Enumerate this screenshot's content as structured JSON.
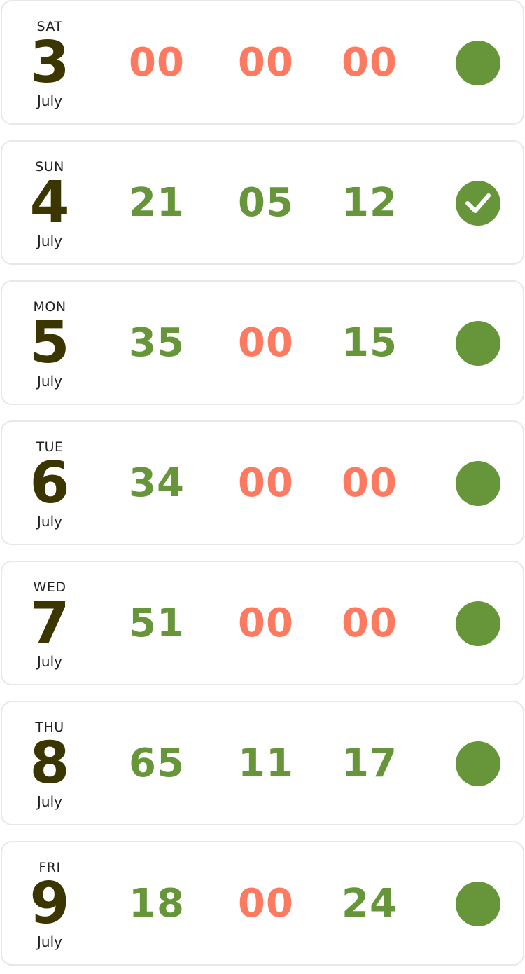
{
  "colors": {
    "positive": "#669639",
    "zero": "#fd7a61",
    "status_fill": "#669639",
    "check_mark": "#ffffff"
  },
  "days": [
    {
      "weekday": "SAT",
      "day": "3",
      "month": "July",
      "values": [
        "00",
        "00",
        "00"
      ],
      "status": "dot"
    },
    {
      "weekday": "SUN",
      "day": "4",
      "month": "July",
      "values": [
        "21",
        "05",
        "12"
      ],
      "status": "check"
    },
    {
      "weekday": "MON",
      "day": "5",
      "month": "July",
      "values": [
        "35",
        "00",
        "15"
      ],
      "status": "dot"
    },
    {
      "weekday": "TUE",
      "day": "6",
      "month": "July",
      "values": [
        "34",
        "00",
        "00"
      ],
      "status": "dot"
    },
    {
      "weekday": "WED",
      "day": "7",
      "month": "July",
      "values": [
        "51",
        "00",
        "00"
      ],
      "status": "dot"
    },
    {
      "weekday": "THU",
      "day": "8",
      "month": "July",
      "values": [
        "65",
        "11",
        "17"
      ],
      "status": "dot"
    },
    {
      "weekday": "FRI",
      "day": "9",
      "month": "July",
      "values": [
        "18",
        "00",
        "24"
      ],
      "status": "dot"
    }
  ]
}
